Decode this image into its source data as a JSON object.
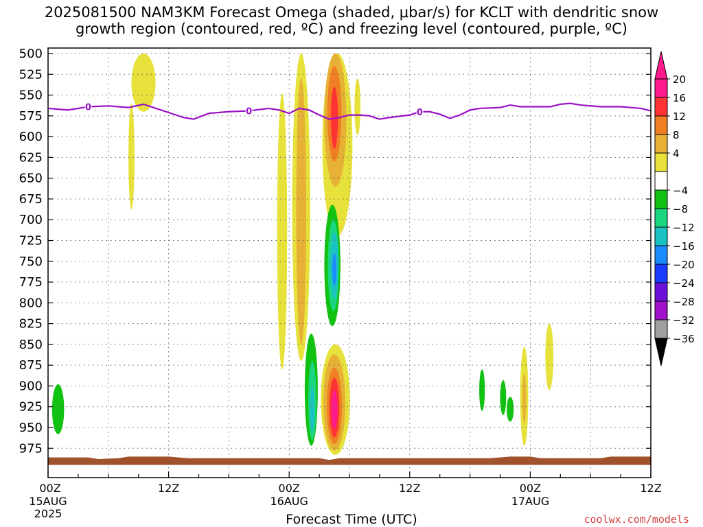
{
  "chart_data": {
    "type": "heatmap",
    "title_line1": "2025081500 NAM3KM Forecast Omega (shaded, μbar/s) for KCLT with dendritic snow",
    "title_line2": "growth region (contoured, red, ºC) and freezing level (contoured, purple, ºC)",
    "xlabel": "Forecast Time (UTC)",
    "ylabel": "",
    "credit": "coolwx.com/models",
    "x_range_hours": [
      0,
      60
    ],
    "y_range_mb": [
      500,
      990
    ],
    "y_ticks": [
      500,
      525,
      550,
      575,
      600,
      625,
      650,
      675,
      700,
      725,
      750,
      775,
      800,
      825,
      850,
      875,
      900,
      925,
      950,
      975
    ],
    "x_ticks": [
      {
        "hour": 0,
        "label": "00Z",
        "date": "15AUG",
        "year": "2025"
      },
      {
        "hour": 12,
        "label": "12Z",
        "date": "",
        "year": ""
      },
      {
        "hour": 24,
        "label": "00Z",
        "date": "16AUG",
        "year": ""
      },
      {
        "hour": 36,
        "label": "12Z",
        "date": "",
        "year": ""
      },
      {
        "hour": 48,
        "label": "00Z",
        "date": "17AUG",
        "year": ""
      },
      {
        "hour": 60,
        "label": "12Z",
        "date": "",
        "year": ""
      }
    ],
    "grid": true,
    "colorbar": {
      "placement": "right",
      "tick_labels": [
        "20",
        "16",
        "12",
        "8",
        "4",
        "−4",
        "−8",
        "−12",
        "−16",
        "−20",
        "−24",
        "−28",
        "−32",
        "−36"
      ],
      "colors": [
        "#ff1a8c",
        "#ff3333",
        "#f07f23",
        "#e7b135",
        "#e6e13b",
        "#ffffff",
        "#12c212",
        "#1ad680",
        "#1ac2c2",
        "#1a8cff",
        "#1a3cff",
        "#6a10d8",
        "#a010c8",
        "#a0a0a0"
      ],
      "top_color": "#ff1a8c",
      "bottom_color": "#000000"
    },
    "freezing_level": {
      "color": "#9a10c8",
      "label": "0",
      "points": [
        [
          0,
          566
        ],
        [
          2,
          568
        ],
        [
          4,
          564
        ],
        [
          6,
          563
        ],
        [
          8,
          565
        ],
        [
          9.5,
          561
        ],
        [
          11,
          567
        ],
        [
          12,
          571
        ],
        [
          13.5,
          577
        ],
        [
          14.5,
          579
        ],
        [
          16,
          572
        ],
        [
          18,
          570
        ],
        [
          20,
          569
        ],
        [
          22,
          566
        ],
        [
          23,
          568
        ],
        [
          24,
          572
        ],
        [
          25,
          566
        ],
        [
          26,
          568
        ],
        [
          27,
          574
        ],
        [
          28,
          579
        ],
        [
          29,
          577
        ],
        [
          30,
          574
        ],
        [
          31,
          574
        ],
        [
          32,
          575
        ],
        [
          33,
          579
        ],
        [
          34,
          577
        ],
        [
          36,
          574
        ],
        [
          37,
          570
        ],
        [
          38,
          570
        ],
        [
          39,
          573
        ],
        [
          40,
          578
        ],
        [
          41,
          574
        ],
        [
          42,
          568
        ],
        [
          43,
          566
        ],
        [
          45,
          565
        ],
        [
          46,
          562
        ],
        [
          47,
          564
        ],
        [
          49,
          564
        ],
        [
          50,
          564
        ],
        [
          51,
          561
        ],
        [
          52,
          560
        ],
        [
          53,
          562
        ],
        [
          55,
          564
        ],
        [
          57,
          564
        ],
        [
          59,
          566
        ],
        [
          60,
          569
        ]
      ],
      "labels_at_hours": [
        4,
        20,
        37
      ]
    },
    "omega_regions": [
      {
        "value": 6,
        "color": "#e6e13b",
        "cx": 9.5,
        "x_half": 1.2,
        "p_top": 500,
        "p_bot": 570,
        "shape": "ellipse"
      },
      {
        "value": 5,
        "color": "#e6e13b",
        "cx": 8.3,
        "x_half": 0.3,
        "p_top": 560,
        "p_bot": 688,
        "shape": "ellipse"
      },
      {
        "value": 6,
        "color": "#e6e13b",
        "cx": 25.2,
        "x_half": 0.9,
        "p_top": 500,
        "p_bot": 870,
        "shape": "ellipse"
      },
      {
        "value": 9,
        "color": "#e7b135",
        "cx": 25.2,
        "x_half": 0.5,
        "p_top": 530,
        "p_bot": 850,
        "shape": "ellipse"
      },
      {
        "value": 5,
        "color": "#e6e13b",
        "cx": 23.3,
        "x_half": 0.5,
        "p_top": 548,
        "p_bot": 880,
        "shape": "ellipse"
      },
      {
        "value": 6,
        "color": "#e6e13b",
        "cx": 28.8,
        "x_half": 1.5,
        "p_top": 500,
        "p_bot": 720,
        "shape": "ellipse"
      },
      {
        "value": 9,
        "color": "#e7b135",
        "cx": 28.6,
        "x_half": 1.1,
        "p_top": 500,
        "p_bot": 660,
        "shape": "ellipse"
      },
      {
        "value": 13,
        "color": "#f07f23",
        "cx": 28.5,
        "x_half": 0.7,
        "p_top": 515,
        "p_bot": 630,
        "shape": "ellipse"
      },
      {
        "value": 17,
        "color": "#ff3333",
        "cx": 28.5,
        "x_half": 0.35,
        "p_top": 540,
        "p_bot": 615,
        "shape": "ellipse"
      },
      {
        "value": 5,
        "color": "#e6e13b",
        "cx": 30.8,
        "x_half": 0.3,
        "p_top": 530,
        "p_bot": 598,
        "shape": "ellipse"
      },
      {
        "value": -6,
        "color": "#12c212",
        "cx": 28.3,
        "x_half": 0.8,
        "p_top": 682,
        "p_bot": 828,
        "shape": "ellipse"
      },
      {
        "value": -10,
        "color": "#1ad680",
        "cx": 28.4,
        "x_half": 0.55,
        "p_top": 700,
        "p_bot": 810,
        "shape": "ellipse"
      },
      {
        "value": -14,
        "color": "#1ac2c2",
        "cx": 28.5,
        "x_half": 0.4,
        "p_top": 715,
        "p_bot": 795,
        "shape": "ellipse"
      },
      {
        "value": -18,
        "color": "#1a8cff",
        "cx": 28.5,
        "x_half": 0.2,
        "p_top": 740,
        "p_bot": 780,
        "shape": "ellipse"
      },
      {
        "value": -6,
        "color": "#12c212",
        "cx": 1.0,
        "x_half": 0.6,
        "p_top": 898,
        "p_bot": 958,
        "shape": "ellipse"
      },
      {
        "value": -6,
        "color": "#12c212",
        "cx": 26.2,
        "x_half": 0.65,
        "p_top": 837,
        "p_bot": 972,
        "shape": "ellipse"
      },
      {
        "value": -10,
        "color": "#1ad680",
        "cx": 26.3,
        "x_half": 0.4,
        "p_top": 870,
        "p_bot": 965,
        "shape": "ellipse"
      },
      {
        "value": -14,
        "color": "#1ac2c2",
        "cx": 26.3,
        "x_half": 0.22,
        "p_top": 900,
        "p_bot": 955,
        "shape": "ellipse"
      },
      {
        "value": 6,
        "color": "#e6e13b",
        "cx": 28.6,
        "x_half": 1.45,
        "p_top": 850,
        "p_bot": 983,
        "shape": "ellipse"
      },
      {
        "value": 9,
        "color": "#e7b135",
        "cx": 28.5,
        "x_half": 1.1,
        "p_top": 862,
        "p_bot": 978,
        "shape": "ellipse"
      },
      {
        "value": 13,
        "color": "#f07f23",
        "cx": 28.5,
        "x_half": 0.75,
        "p_top": 878,
        "p_bot": 970,
        "shape": "ellipse"
      },
      {
        "value": 17,
        "color": "#ff3333",
        "cx": 28.5,
        "x_half": 0.5,
        "p_top": 890,
        "p_bot": 962,
        "shape": "ellipse"
      },
      {
        "value": 21,
        "color": "#ff1a8c",
        "cx": 28.5,
        "x_half": 0.3,
        "p_top": 905,
        "p_bot": 952,
        "shape": "ellipse"
      },
      {
        "value": -6,
        "color": "#12c212",
        "cx": 43.2,
        "x_half": 0.28,
        "p_top": 880,
        "p_bot": 930,
        "shape": "ellipse"
      },
      {
        "value": -6,
        "color": "#12c212",
        "cx": 45.3,
        "x_half": 0.3,
        "p_top": 893,
        "p_bot": 935,
        "shape": "ellipse"
      },
      {
        "value": -6,
        "color": "#12c212",
        "cx": 46.0,
        "x_half": 0.35,
        "p_top": 913,
        "p_bot": 943,
        "shape": "ellipse"
      },
      {
        "value": 5,
        "color": "#e6e13b",
        "cx": 47.4,
        "x_half": 0.4,
        "p_top": 853,
        "p_bot": 972,
        "shape": "ellipse"
      },
      {
        "value": 9,
        "color": "#e7b135",
        "cx": 47.4,
        "x_half": 0.18,
        "p_top": 885,
        "p_bot": 945,
        "shape": "ellipse"
      },
      {
        "value": 5,
        "color": "#e6e13b",
        "cx": 49.9,
        "x_half": 0.4,
        "p_top": 825,
        "p_bot": 905,
        "shape": "ellipse"
      }
    ],
    "terrain": {
      "color": "#a0522d",
      "points": [
        [
          0,
          986
        ],
        [
          4,
          986
        ],
        [
          5,
          988
        ],
        [
          7,
          987
        ],
        [
          8,
          985
        ],
        [
          12,
          985
        ],
        [
          14,
          987
        ],
        [
          20,
          987
        ],
        [
          25,
          987
        ],
        [
          27,
          987
        ],
        [
          28,
          989
        ],
        [
          29,
          987
        ],
        [
          36,
          987
        ],
        [
          44,
          987
        ],
        [
          46,
          985
        ],
        [
          48,
          985
        ],
        [
          49,
          987
        ],
        [
          55,
          987
        ],
        [
          56,
          985
        ],
        [
          60,
          985
        ]
      ],
      "base_mb": 995
    }
  }
}
